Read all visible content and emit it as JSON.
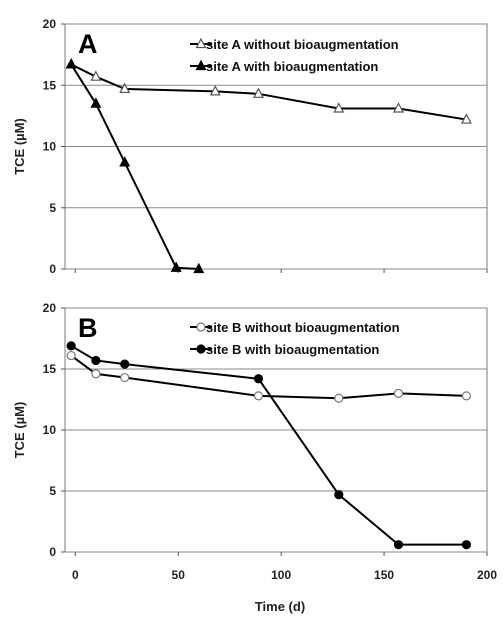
{
  "chart_data": [
    {
      "type": "line",
      "panel_label": "A",
      "xlabel": "",
      "ylabel": "TCE (µM)",
      "xlim": [
        0,
        200
      ],
      "ylim": [
        0,
        20
      ],
      "yticks": [
        "0",
        "5",
        "10",
        "15",
        "20"
      ],
      "xticks": [],
      "grid": "horizontal",
      "legend_position": "top-right",
      "series": [
        {
          "name": "site A without bioaugmentation",
          "marker": "open-triangle",
          "x": [
            -2,
            10,
            24,
            68,
            89,
            128,
            157,
            190
          ],
          "y": [
            16.7,
            15.7,
            14.7,
            14.5,
            14.3,
            13.1,
            13.1,
            12.2
          ]
        },
        {
          "name": "site A with bioaugmentation",
          "marker": "filled-triangle",
          "x": [
            -2,
            10,
            24,
            49,
            60
          ],
          "y": [
            16.7,
            13.5,
            8.7,
            0.1,
            0.0
          ]
        }
      ]
    },
    {
      "type": "line",
      "panel_label": "B",
      "xlabel": "Time (d)",
      "ylabel": "TCE (µM)",
      "xlim": [
        0,
        200
      ],
      "ylim": [
        0,
        20
      ],
      "yticks": [
        "0",
        "5",
        "10",
        "15",
        "20"
      ],
      "xticks": [
        "0",
        "50",
        "100",
        "150",
        "200"
      ],
      "grid": "horizontal",
      "legend_position": "top-right",
      "series": [
        {
          "name": "site B without bioaugmentation",
          "marker": "open-circle",
          "x": [
            -2,
            10,
            24,
            89,
            128,
            157,
            190
          ],
          "y": [
            16.1,
            14.6,
            14.3,
            12.8,
            12.6,
            13.0,
            12.8
          ]
        },
        {
          "name": "site B with bioaugmentation",
          "marker": "filled-circle",
          "x": [
            -2,
            10,
            24,
            89,
            128,
            157,
            190
          ],
          "y": [
            16.9,
            15.7,
            15.4,
            14.2,
            4.7,
            0.6,
            0.6
          ]
        }
      ]
    }
  ]
}
